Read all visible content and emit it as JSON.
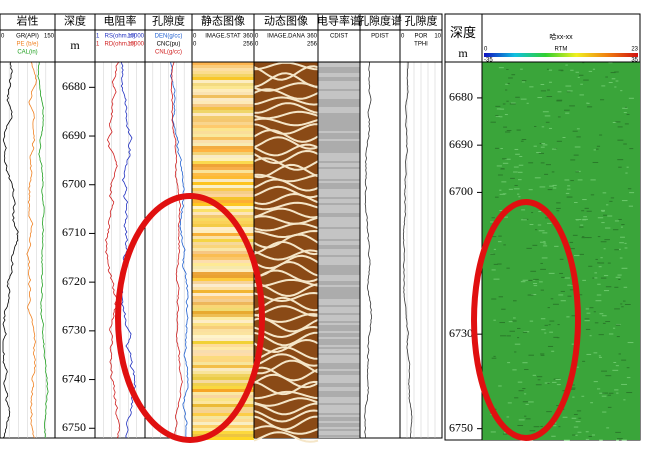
{
  "left_panel": {
    "tracks": [
      {
        "title": "岩性",
        "rows": [
          {
            "name": "GR(API)",
            "left": "0",
            "right": "150",
            "color": "#000000"
          },
          {
            "name": "PE (b/e)",
            "color": "#f08020"
          },
          {
            "name": "CAL(in)",
            "color": "#20a020"
          }
        ]
      },
      {
        "title": "深度",
        "rows": [
          {
            "name": "m"
          }
        ]
      },
      {
        "title": "电阻率",
        "rows": [
          {
            "name": "RS(ohm.m)",
            "left": "1",
            "right": "10000",
            "color": "#2030c0"
          },
          {
            "name": "RD(ohm.m)",
            "left": "1",
            "right": "10000",
            "color": "#d02020"
          }
        ]
      },
      {
        "title": "孔隙度",
        "rows": [
          {
            "name": "DEN(g/cc)",
            "color": "#2060d0"
          },
          {
            "name": "CNC(pu)",
            "color": "#000000"
          },
          {
            "name": "CNL(g/cc)",
            "color": "#d02020"
          }
        ]
      },
      {
        "title": "静态图像",
        "rows": [
          {
            "name": "IMAGE.STAT",
            "left": "0",
            "right": "360"
          },
          {
            "left": "0",
            "right": "256"
          }
        ]
      },
      {
        "title": "动态图像",
        "rows": [
          {
            "name": "IMAGE.DANA",
            "left": "0",
            "right": "360"
          },
          {
            "left": "0",
            "right": "256"
          }
        ]
      },
      {
        "title": "电导率谱",
        "rows": [
          {
            "name": "CDIST"
          }
        ]
      },
      {
        "title": "孔隙度谱",
        "rows": [
          {
            "name": "PDIST"
          }
        ]
      },
      {
        "title": "孔隙度",
        "rows": [
          {
            "name": "POR",
            "left": "0",
            "right": "10"
          },
          {
            "name": "TPHI"
          }
        ]
      }
    ],
    "depth_lim": [
      6674.8,
      6752
    ],
    "depth_ticks": [
      6680,
      6690,
      6700,
      6710,
      6720,
      6730,
      6740,
      6750
    ]
  },
  "right_panel": {
    "depth_title": "深度",
    "depth_unit": "m",
    "well": "哈xx-xx",
    "colorbar": {
      "name": "RTM",
      "left": "0",
      "right": "23",
      "left2": "-35",
      "right2": "35"
    },
    "depth_lim": [
      6672.4,
      6752.4
    ],
    "depth_ticks": [
      6680,
      6690,
      6700,
      6730,
      6750
    ]
  }
}
